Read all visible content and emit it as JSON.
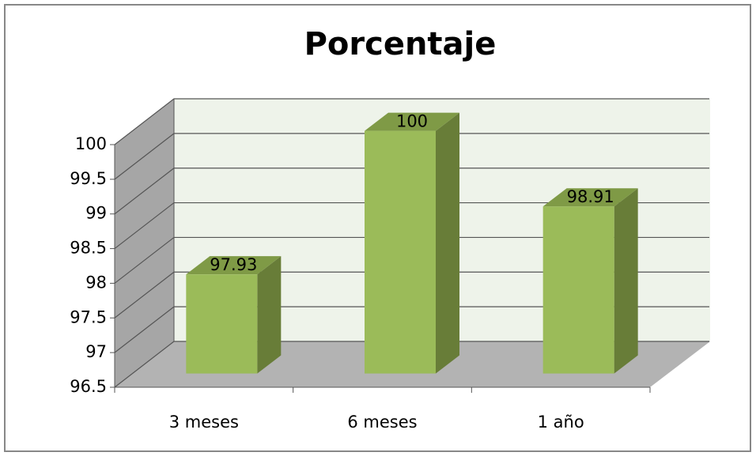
{
  "chart_data": {
    "type": "bar3d",
    "title": "Porcentaje",
    "categories": [
      "3 meses",
      "6 meses",
      "1 año"
    ],
    "values": [
      97.93,
      100,
      98.91
    ],
    "color": "#9bbb59",
    "ylim": [
      96.5,
      100
    ],
    "yticks": [
      96.5,
      97,
      97.5,
      98,
      98.5,
      99,
      99.5,
      100
    ],
    "grid": true
  }
}
